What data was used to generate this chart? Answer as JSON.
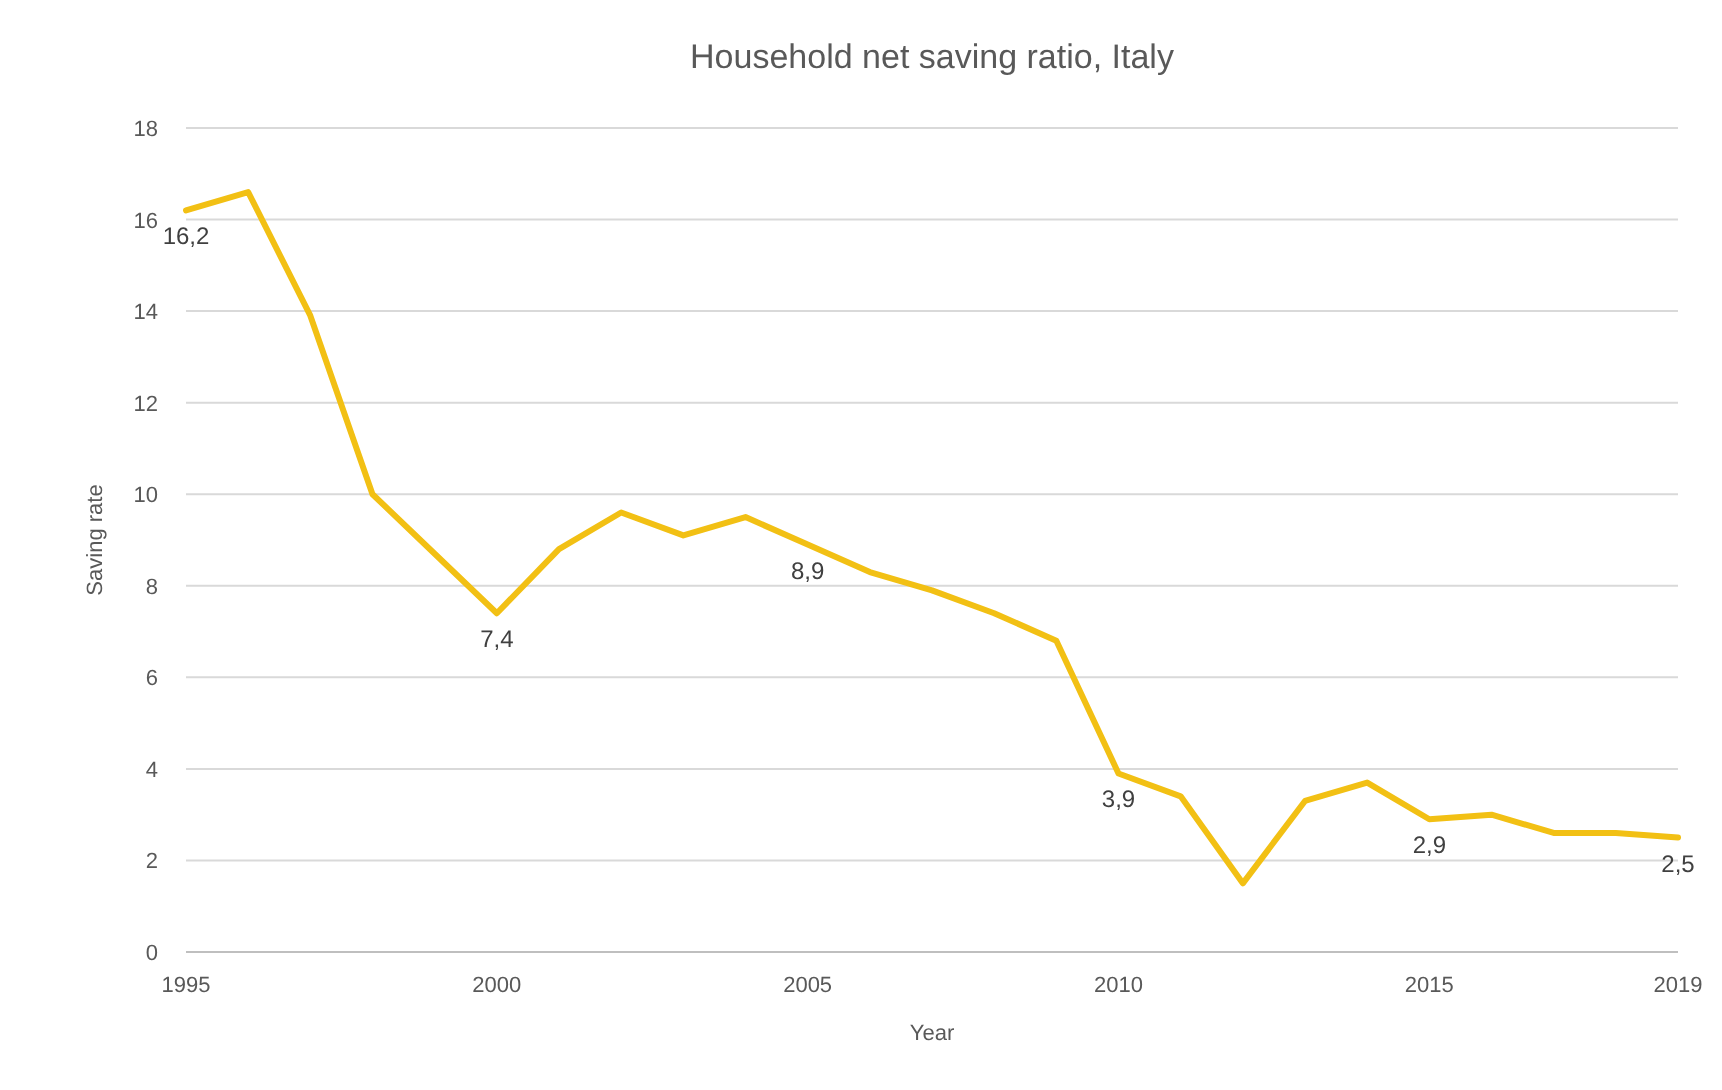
{
  "chart_data": {
    "type": "line",
    "title": "Household net saving ratio, Italy",
    "xlabel": "Year",
    "ylabel": "Saving rate",
    "x": [
      1995,
      1996,
      1997,
      1998,
      1999,
      2000,
      2001,
      2002,
      2003,
      2004,
      2005,
      2006,
      2007,
      2008,
      2009,
      2010,
      2011,
      2012,
      2013,
      2014,
      2015,
      2016,
      2017,
      2018,
      2019
    ],
    "series": [
      {
        "color": "#f2c014",
        "values": [
          16.2,
          16.6,
          13.9,
          10.0,
          8.7,
          7.4,
          8.8,
          9.6,
          9.1,
          9.5,
          8.9,
          8.3,
          7.9,
          7.4,
          6.8,
          3.9,
          3.4,
          1.5,
          3.3,
          3.7,
          2.9,
          3.0,
          2.6,
          2.6,
          2.5
        ],
        "value_labels": [
          "16,2",
          null,
          null,
          null,
          null,
          "7,4",
          null,
          null,
          null,
          null,
          "8,9",
          null,
          null,
          null,
          null,
          "3,9",
          null,
          null,
          null,
          null,
          "2,9",
          null,
          null,
          null,
          "2,5"
        ]
      }
    ],
    "xlim": [
      1995,
      2019
    ],
    "xticks": [
      1995,
      2000,
      2005,
      2010,
      2015,
      2019
    ],
    "ylim": [
      0,
      18
    ],
    "yticks": [
      0,
      2,
      4,
      6,
      8,
      10,
      12,
      14,
      16,
      18
    ],
    "grid": "y"
  }
}
